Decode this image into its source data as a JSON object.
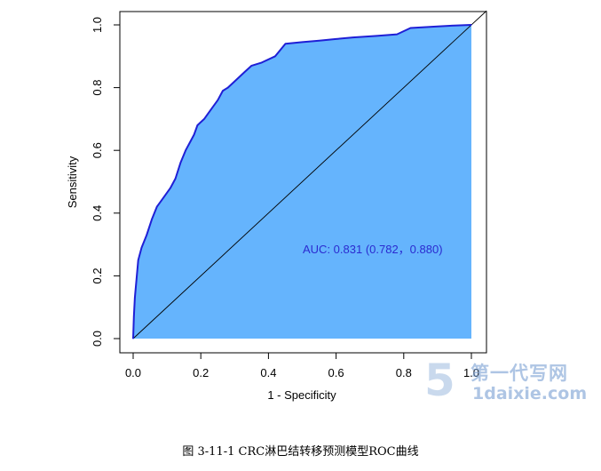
{
  "chart_data": {
    "type": "area",
    "title": "",
    "xlabel": "1 - Specificity",
    "ylabel": "Sensitivity",
    "xlim": [
      0,
      1
    ],
    "ylim": [
      0,
      1
    ],
    "xticks": [
      "0.0",
      "0.2",
      "0.4",
      "0.6",
      "0.8",
      "1.0"
    ],
    "yticks": [
      "0.0",
      "0.2",
      "0.4",
      "0.6",
      "0.8",
      "1.0"
    ],
    "grid": false,
    "series": [
      {
        "x": [
          0,
          0.002,
          0.005,
          0.01,
          0.015,
          0.025,
          0.04,
          0.055,
          0.07,
          0.09,
          0.11,
          0.125,
          0.14,
          0.155,
          0.17,
          0.18,
          0.19,
          0.2,
          0.21,
          0.23,
          0.25,
          0.265,
          0.28,
          0.31,
          0.33,
          0.35,
          0.38,
          0.42,
          0.45,
          0.5,
          0.55,
          0.6,
          0.65,
          0.72,
          0.78,
          0.82,
          0.9,
          0.95,
          1.0
        ],
        "y": [
          0,
          0.07,
          0.13,
          0.19,
          0.25,
          0.29,
          0.33,
          0.38,
          0.42,
          0.45,
          0.48,
          0.51,
          0.56,
          0.6,
          0.63,
          0.65,
          0.68,
          0.69,
          0.7,
          0.73,
          0.76,
          0.79,
          0.8,
          0.83,
          0.85,
          0.87,
          0.88,
          0.9,
          0.94,
          0.945,
          0.95,
          0.955,
          0.96,
          0.965,
          0.97,
          0.99,
          0.995,
          0.998,
          1.0
        ]
      }
    ],
    "reference_line": {
      "x": [
        0,
        1
      ],
      "y": [
        0,
        1
      ]
    },
    "annotation": "AUC: 0.831 (0.782，0.880)",
    "fill_color": "#65b4fd",
    "curve_color": "#1f1fd6",
    "annotation_color": "#2b2bd0"
  },
  "caption": "图 3-11-1 CRC淋巴结转移预测模型ROC曲线",
  "watermark": {
    "glyph": "5",
    "title": "第一代写网",
    "url": "1daixie.com"
  }
}
